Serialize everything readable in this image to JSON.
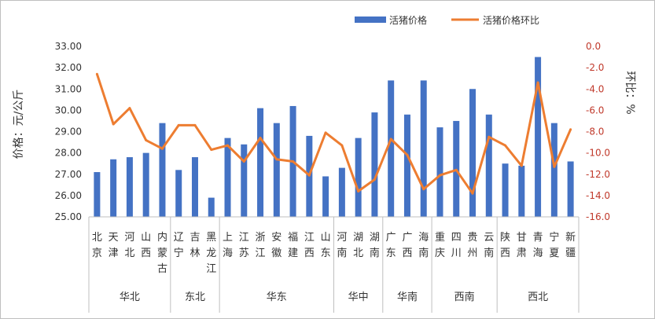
{
  "colors": {
    "bar": "#4472C4",
    "line": "#ED7D31",
    "right_axis_text": "#C0392B",
    "frame": "#BFBFBF"
  },
  "chart_data": {
    "type": "bar",
    "categories": [
      "北京",
      "天津",
      "河北",
      "山西",
      "内蒙古",
      "辽宁",
      "吉林",
      "黑龙江",
      "上海",
      "江苏",
      "浙江",
      "安徽",
      "福建",
      "江西",
      "山东",
      "河南",
      "湖北",
      "湖南",
      "广东",
      "广西",
      "海南",
      "重庆",
      "四川",
      "贵州",
      "云南",
      "陕西",
      "甘肃",
      "青海",
      "宁夏",
      "新疆"
    ],
    "groups": [
      {
        "label": "华北",
        "count": 5
      },
      {
        "label": "东北",
        "count": 3
      },
      {
        "label": "华东",
        "count": 7
      },
      {
        "label": "华中",
        "count": 3
      },
      {
        "label": "华南",
        "count": 3
      },
      {
        "label": "西南",
        "count": 4
      },
      {
        "label": "西北",
        "count": 5
      }
    ],
    "series": [
      {
        "name": "活猪价格",
        "type": "bar",
        "axis": "left",
        "values": [
          27.1,
          27.7,
          27.8,
          28.0,
          29.4,
          27.2,
          27.8,
          25.9,
          28.7,
          28.4,
          30.1,
          29.4,
          30.2,
          28.8,
          26.9,
          27.3,
          28.7,
          29.9,
          31.4,
          29.8,
          31.4,
          29.2,
          29.5,
          31.0,
          29.8,
          27.5,
          27.4,
          32.5,
          29.4,
          27.6
        ]
      },
      {
        "name": "活猪价格环比",
        "type": "line",
        "axis": "right",
        "values": [
          -2.6,
          -7.3,
          -5.8,
          -8.8,
          -9.6,
          -7.4,
          -7.4,
          -9.7,
          -9.3,
          -10.8,
          -8.6,
          -10.6,
          -10.8,
          -12.1,
          -8.1,
          -9.3,
          -13.6,
          -12.5,
          -8.7,
          -10.2,
          -13.4,
          -12.1,
          -11.6,
          -13.8,
          -8.5,
          -9.3,
          -11.2,
          -3.4,
          -11.3,
          -7.8
        ]
      }
    ],
    "y_left": {
      "label": "价格：元/公斤",
      "min": 25,
      "max": 33,
      "step": 1,
      "ticks": [
        "25.00",
        "26.00",
        "27.00",
        "28.00",
        "29.00",
        "30.00",
        "31.00",
        "32.00",
        "33.00"
      ]
    },
    "y_right": {
      "label": "环比：%",
      "min": -16,
      "max": 0,
      "step": 2,
      "ticks": [
        "-16.0",
        "-14.0",
        "-12.0",
        "-10.0",
        "-8.0",
        "-6.0",
        "-4.0",
        "-2.0",
        "0.0"
      ]
    },
    "legend": {
      "position": "top-right",
      "items": [
        "活猪价格",
        "活猪价格环比"
      ]
    },
    "grid": false
  }
}
